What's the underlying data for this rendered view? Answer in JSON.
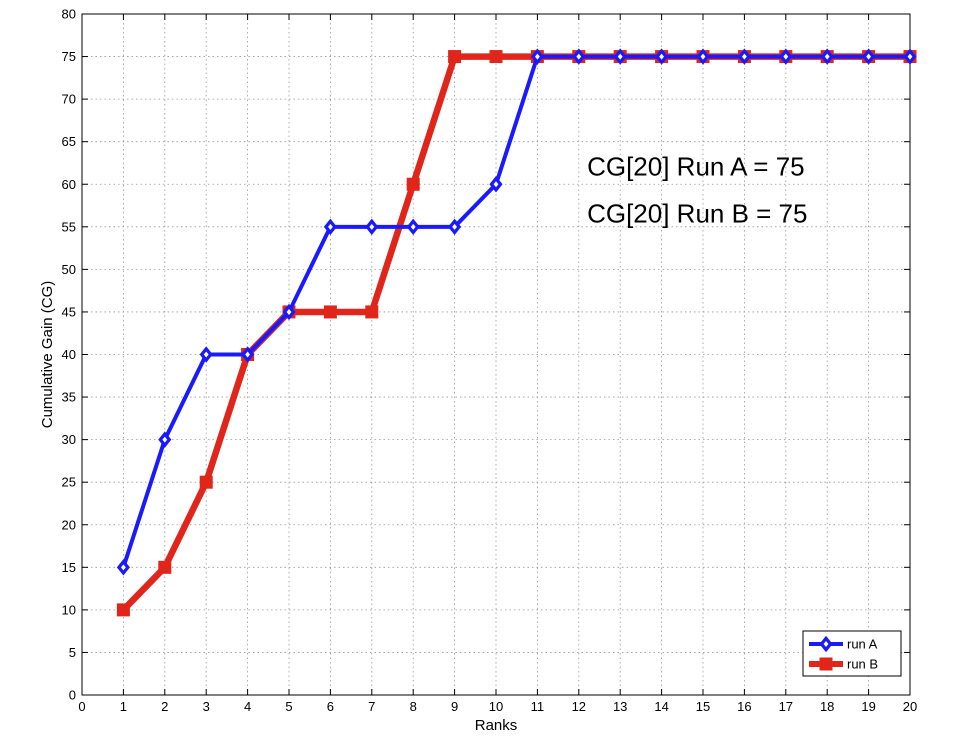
{
  "chart_data": {
    "type": "line",
    "title": "",
    "xlabel": "Ranks",
    "ylabel": "Cumulative Gain (CG)",
    "xlim": [
      0,
      20
    ],
    "ylim": [
      0,
      80
    ],
    "xticks": [
      0,
      1,
      2,
      3,
      4,
      5,
      6,
      7,
      8,
      9,
      10,
      11,
      12,
      13,
      14,
      15,
      16,
      17,
      18,
      19,
      20
    ],
    "yticks": [
      0,
      5,
      10,
      15,
      20,
      25,
      30,
      35,
      40,
      45,
      50,
      55,
      60,
      65,
      70,
      75,
      80
    ],
    "grid": true,
    "legend_position": "bottom-right",
    "x": [
      1,
      2,
      3,
      4,
      5,
      6,
      7,
      8,
      9,
      10,
      11,
      12,
      13,
      14,
      15,
      16,
      17,
      18,
      19,
      20
    ],
    "series": [
      {
        "name": "run A",
        "color": "#1a1aff",
        "marker": "diamond",
        "values": [
          15,
          30,
          40,
          40,
          45,
          55,
          55,
          55,
          55,
          60,
          75,
          75,
          75,
          75,
          75,
          75,
          75,
          75,
          75,
          75
        ]
      },
      {
        "name": "run B",
        "color": "#e0261a",
        "marker": "square",
        "values": [
          10,
          15,
          25,
          40,
          45,
          45,
          45,
          60,
          75,
          75,
          75,
          75,
          75,
          75,
          75,
          75,
          75,
          75,
          75,
          75
        ]
      }
    ],
    "annotations": [
      {
        "text": "CG[20] Run A = 75",
        "x": 12.2,
        "y": 61
      },
      {
        "text": "CG[20] Run B = 75",
        "x": 12.2,
        "y": 55.5
      }
    ]
  }
}
